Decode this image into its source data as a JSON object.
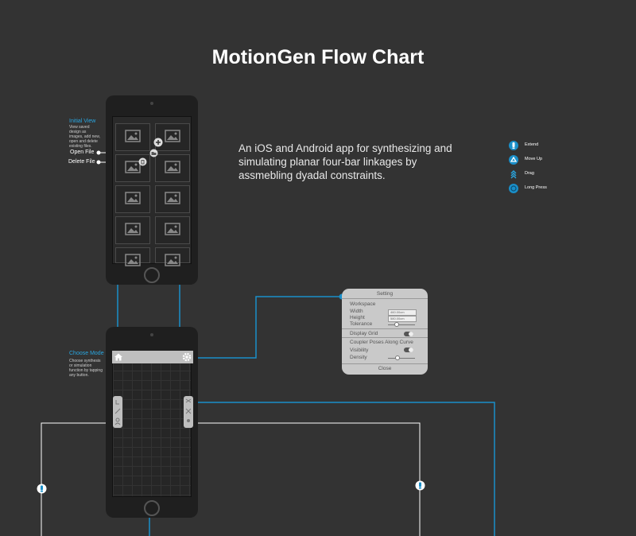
{
  "title": "MotionGen Flow Chart",
  "description": "An iOS and Android app for synthesizing and simulating planar four-bar linkages by assmebling dyadal constraints.",
  "colors": {
    "background": "#333333",
    "accent": "#29a6e0",
    "line_blue": "#1a8fc9"
  },
  "legend": [
    {
      "icon": "extend-icon",
      "label": "Extend"
    },
    {
      "icon": "move-up-icon",
      "label": "Move Up"
    },
    {
      "icon": "drag-icon",
      "label": "Drag"
    },
    {
      "icon": "long-press-icon",
      "label": "Long Press"
    }
  ],
  "initial_view": {
    "title": "Initial View",
    "text": "View saved design as images, add new, open and delete existing files.",
    "open_file": "Open File",
    "delete_file": "Delete File"
  },
  "choose_mode": {
    "title": "Choose Mode",
    "text": "Choose synthesis or simulation function by tapping any button."
  },
  "setting": {
    "title": "Setting",
    "workspace": "Workspace",
    "width_label": "Width",
    "width_value": "460.00cm",
    "height_label": "Height",
    "height_value": "580.00cm",
    "tolerance_label": "Tolerance",
    "display_grid": "Display Grid",
    "coupler_poses": "Coupler Poses Along Curve",
    "visibility": "Visibility",
    "density": "Density",
    "close": "Close"
  }
}
